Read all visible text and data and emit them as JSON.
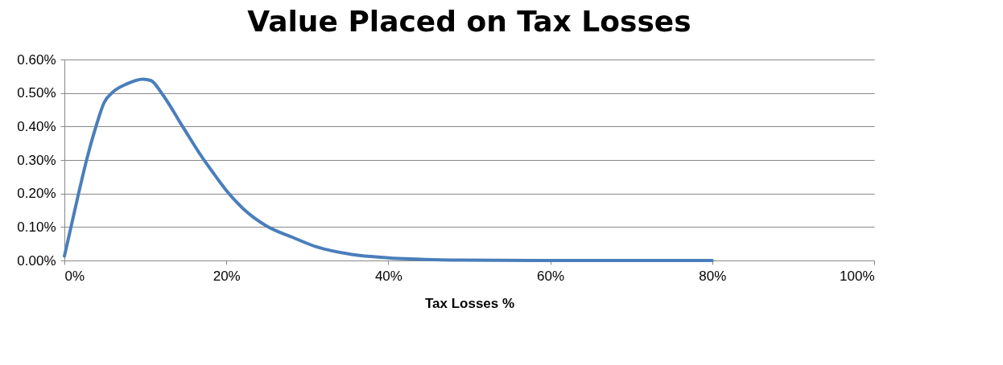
{
  "chart_data": {
    "type": "line",
    "title": "Value Placed on Tax Losses",
    "xlabel": "Tax Losses %",
    "x": [
      0,
      1.75,
      2.74,
      3.9,
      4.9,
      6.0,
      7.7,
      9.7,
      10.7,
      12,
      14.6,
      16.9,
      18.3,
      19.9,
      22.2,
      24.9,
      28.2,
      31.1,
      35.5,
      40,
      44.5,
      48.9,
      57.9,
      80
    ],
    "series": [
      {
        "color": "#4a7ebb",
        "values": [
          0.013,
          0.2,
          0.3,
          0.4,
          0.471,
          0.503,
          0.527,
          0.541,
          0.537,
          0.5,
          0.4,
          0.312,
          0.264,
          0.212,
          0.152,
          0.104,
          0.069,
          0.041,
          0.018,
          0.008,
          0.003,
          0.001,
          0,
          0
        ]
      }
    ],
    "xlim": [
      0,
      100
    ],
    "xticks": [
      {
        "value": 0,
        "label": "0%"
      },
      {
        "value": 20,
        "label": "20%"
      },
      {
        "value": 40,
        "label": "40%"
      },
      {
        "value": 60,
        "label": "60%"
      },
      {
        "value": 80,
        "label": "80%"
      },
      {
        "value": 100,
        "label": "100%"
      }
    ],
    "ylim": [
      0,
      0.6
    ],
    "yticks": [
      {
        "value": 0,
        "label": "0.00%"
      },
      {
        "value": 0.1,
        "label": "0.10%"
      },
      {
        "value": 0.2,
        "label": "0.20%"
      },
      {
        "value": 0.3,
        "label": "0.30%"
      },
      {
        "value": 0.4,
        "label": "0.40%"
      },
      {
        "value": 0.5,
        "label": "0.50%"
      },
      {
        "value": 0.6,
        "label": "0.60%"
      }
    ],
    "grid": "y",
    "marker": "none",
    "line_style": "solid"
  }
}
